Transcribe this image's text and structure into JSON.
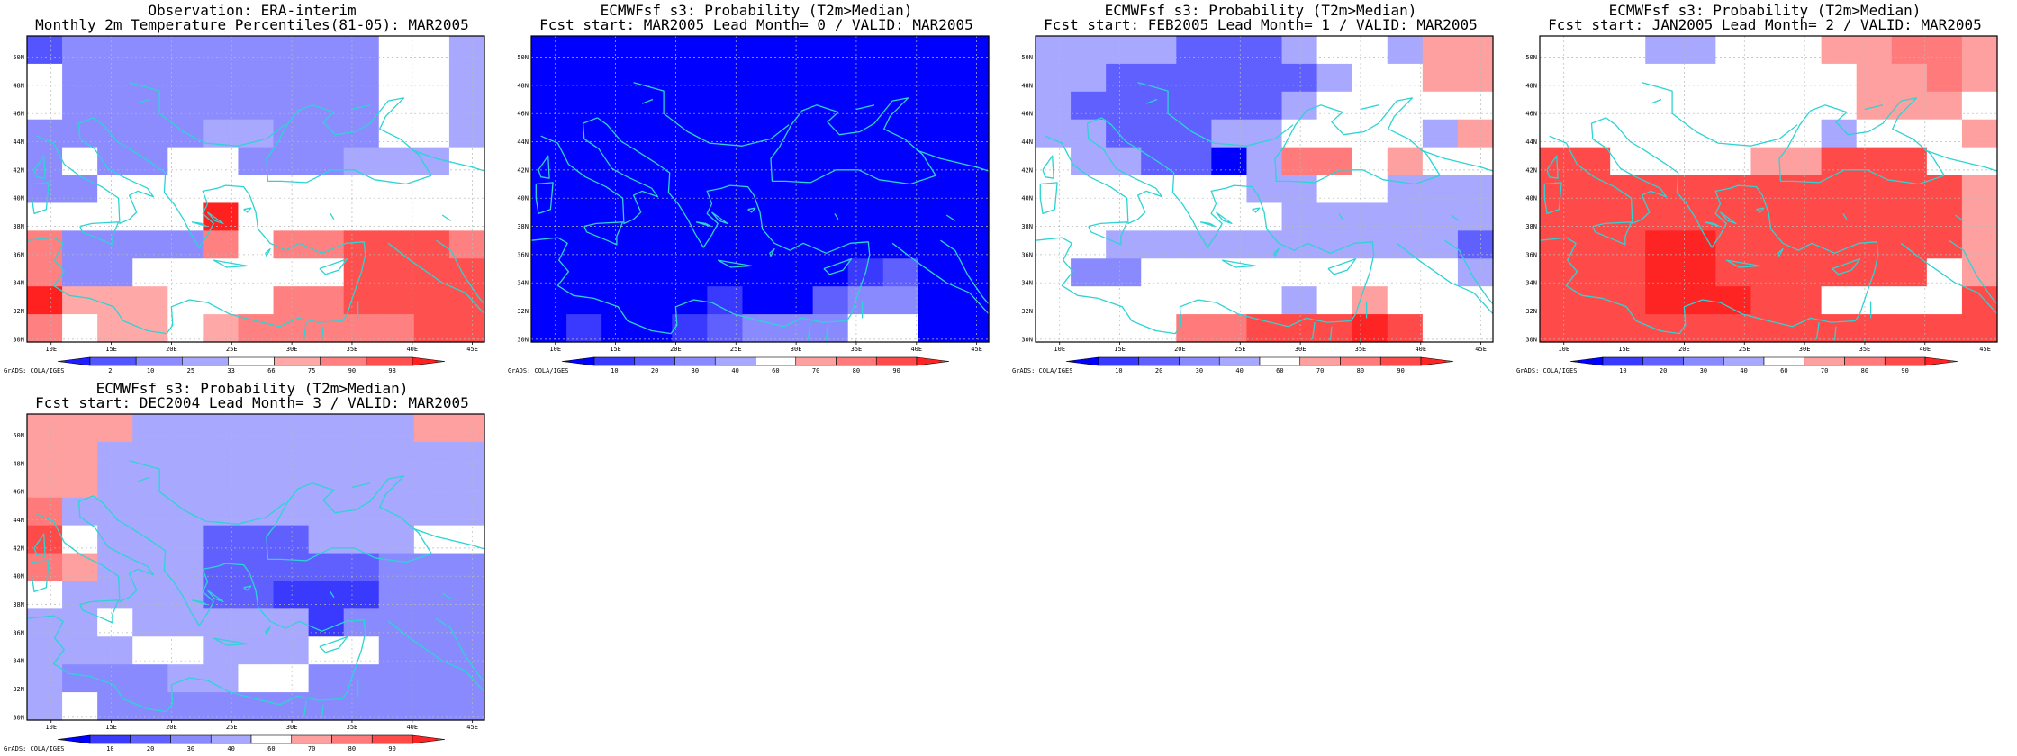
{
  "colors": {
    "coast": "#2ed3d3",
    "grid": "#b8b8b8",
    "obs_bins": [
      "#1e1eff",
      "#5555ff",
      "#8c8cff",
      "#a8a8ff",
      "#ffffff",
      "#ffa8a8",
      "#ff8080",
      "#ff5050",
      "#ff2020"
    ],
    "prob_bins": [
      "#0000ff",
      "#3a3aff",
      "#6060ff",
      "#8a8aff",
      "#a8a8ff",
      "#ffffff",
      "#ffa0a0",
      "#ff7a7a",
      "#ff4a4a",
      "#ff2424"
    ]
  },
  "map": {
    "lon_ticks": [
      "10E",
      "15E",
      "20E",
      "25E",
      "30E",
      "35E",
      "40E",
      "45E"
    ],
    "lat_ticks": [
      "30N",
      "32N",
      "34N",
      "36N",
      "38N",
      "40N",
      "42N",
      "44N",
      "46N",
      "48N",
      "50N"
    ],
    "credit": "GrADS: COLA/IGES"
  },
  "obs_colorbar_labels": [
    "2",
    "10",
    "25",
    "33",
    "66",
    "75",
    "90",
    "98"
  ],
  "prob_colorbar_labels": [
    "10",
    "20",
    "30",
    "40",
    "60",
    "70",
    "80",
    "90"
  ],
  "panels": [
    {
      "title1": "Observation: ERA-interim",
      "title2": "Monthly 2m Temperature Percentiles(81-05): MAR2005",
      "scale": "obs",
      "grid": [
        "1222222222443",
        "4222222222443",
        "4222222222443",
        "2222233222443",
        "2422442223334",
        "2244444444444",
        "4444484444444",
        "6222264667776",
        "6224444447777",
        "8555444667777",
        "6455456666677"
      ]
    },
    {
      "title1": "ECMWFsf s3: Probability (T2m>Median)",
      "title2": "Fcst start: MAR2005  Lead Month= 0 / VALID: MAR2005",
      "scale": "prob",
      "grid": [
        "0000000000000",
        "0000000000000",
        "0000000000000",
        "0000000000000",
        "0000000000000",
        "0000000000000",
        "0000000000000",
        "0000000000000",
        "0000000001200",
        "0000010023300",
        "0100123335500"
      ]
    },
    {
      "title1": "ECMWFsf s3: Probability (T2m>Median)",
      "title2": "Fcst start: FEB2005  Lead Month= 1 / VALID: MAR2005",
      "scale": "prob",
      "grid": [
        "4444222455466",
        "4422222245566",
        "4222222455555",
        "4422244555546",
        "5442204775655",
        "5555554455444",
        "5555555444444",
        "5544444444442",
        "5335555555554",
        "5555555456555",
        "5555778889855"
      ]
    },
    {
      "title1": "ECMWFsf s3: Probability (T2m>Median)",
      "title2": "Fcst start: JAN2005  Lead Month= 2 / VALID: MAR2005",
      "scale": "prob",
      "grid": [
        "5554455566776",
        "5555555556676",
        "5555555556665",
        "5555555545556",
        "8855556688855",
        "8888888888886",
        "8888888888886",
        "8889988888886",
        "8889988888856",
        "8889998855558",
        "8888888888888"
      ]
    },
    {
      "title1": "ECMWFsf s3: Probability (T2m>Median)",
      "title2": "Fcst start: DEC2004  Lead Month= 3 / VALID: MAR2005",
      "scale": "prob",
      "grid": [
        "6664444444466",
        "6644444444444",
        "6644444444444",
        "7444444444444",
        "8544422244455",
        "7644422222333",
        "5444422111333",
        "4454444413333",
        "4445544455333",
        "4333445533333",
        "4533333333333"
      ]
    }
  ]
}
